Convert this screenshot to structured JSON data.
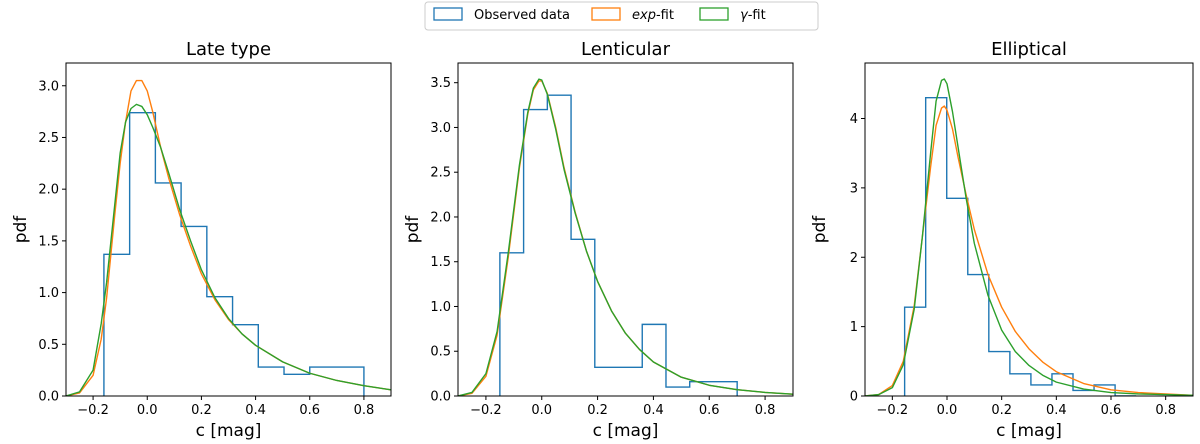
{
  "legend": {
    "items": [
      {
        "key": "observed",
        "label": "Observed data",
        "color": "#1f77b4"
      },
      {
        "key": "exp",
        "label_italic": "exp",
        "label_rest": "-fit",
        "color": "#ff7f0e"
      },
      {
        "key": "gamma",
        "label_italic": "γ",
        "label_rest": "-fit",
        "color": "#2ca02c"
      }
    ]
  },
  "chart_data": [
    {
      "type": "histogram",
      "title": "Late type",
      "xlabel": "c [mag]",
      "ylabel": "pdf",
      "xlim": [
        -0.3,
        0.9
      ],
      "ylim": [
        0,
        3.22
      ],
      "xticks": [
        -0.2,
        0.0,
        0.2,
        0.4,
        0.6,
        0.8
      ],
      "xtick_labels": [
        "−0.2",
        "0.0",
        "0.2",
        "0.4",
        "0.6",
        "0.8"
      ],
      "yticks": [
        0.0,
        0.5,
        1.0,
        1.5,
        2.0,
        2.5,
        3.0
      ],
      "ytick_labels": [
        "0.0",
        "0.5",
        "1.0",
        "1.5",
        "2.0",
        "2.5",
        "3.0"
      ],
      "observed": {
        "edges": [
          -0.16,
          -0.065,
          0.03,
          0.125,
          0.22,
          0.315,
          0.41,
          0.505,
          0.6,
          0.8
        ],
        "values": [
          1.37,
          2.74,
          2.06,
          1.64,
          0.96,
          0.69,
          0.28,
          0.21,
          0.28
        ]
      },
      "exp_fit": {
        "x": [
          -0.3,
          -0.25,
          -0.2,
          -0.17,
          -0.15,
          -0.12,
          -0.1,
          -0.08,
          -0.06,
          -0.04,
          -0.02,
          0.0,
          0.02,
          0.05,
          0.08,
          0.12,
          0.16,
          0.2,
          0.25,
          0.3,
          0.35,
          0.4,
          0.5,
          0.6,
          0.7,
          0.8,
          0.9
        ],
        "y": [
          0.0,
          0.03,
          0.2,
          0.55,
          0.95,
          1.75,
          2.25,
          2.65,
          2.95,
          3.05,
          3.05,
          2.95,
          2.75,
          2.4,
          2.1,
          1.75,
          1.45,
          1.18,
          0.93,
          0.74,
          0.6,
          0.49,
          0.33,
          0.22,
          0.15,
          0.1,
          0.06
        ]
      },
      "gamma_fit": {
        "x": [
          -0.3,
          -0.25,
          -0.2,
          -0.17,
          -0.15,
          -0.12,
          -0.1,
          -0.08,
          -0.06,
          -0.04,
          -0.02,
          0.0,
          0.02,
          0.05,
          0.08,
          0.12,
          0.16,
          0.2,
          0.25,
          0.3,
          0.35,
          0.4,
          0.5,
          0.6,
          0.7,
          0.8,
          0.9
        ],
        "y": [
          0.0,
          0.04,
          0.25,
          0.7,
          1.1,
          1.85,
          2.35,
          2.65,
          2.78,
          2.82,
          2.8,
          2.72,
          2.6,
          2.4,
          2.15,
          1.8,
          1.5,
          1.22,
          0.95,
          0.75,
          0.6,
          0.49,
          0.33,
          0.22,
          0.15,
          0.1,
          0.06
        ]
      }
    },
    {
      "type": "histogram",
      "title": "Lenticular",
      "xlabel": "c [mag]",
      "ylabel": "pdf",
      "xlim": [
        -0.3,
        0.9
      ],
      "ylim": [
        0,
        3.72
      ],
      "xticks": [
        -0.2,
        0.0,
        0.2,
        0.4,
        0.6,
        0.8
      ],
      "xtick_labels": [
        "−0.2",
        "0.0",
        "0.2",
        "0.4",
        "0.6",
        "0.8"
      ],
      "yticks": [
        0.0,
        0.5,
        1.0,
        1.5,
        2.0,
        2.5,
        3.0,
        3.5
      ],
      "ytick_labels": [
        "0.0",
        "0.5",
        "1.0",
        "1.5",
        "2.0",
        "2.5",
        "3.0",
        "3.5"
      ],
      "observed": {
        "edges": [
          -0.15,
          -0.065,
          0.02,
          0.105,
          0.19,
          0.275,
          0.36,
          0.445,
          0.53,
          0.7
        ],
        "values": [
          1.6,
          3.2,
          3.36,
          1.75,
          0.32,
          0.32,
          0.8,
          0.1,
          0.16
        ]
      },
      "exp_fit": {
        "x": [
          -0.3,
          -0.25,
          -0.2,
          -0.16,
          -0.12,
          -0.08,
          -0.05,
          -0.03,
          -0.01,
          0.0,
          0.02,
          0.05,
          0.08,
          0.12,
          0.16,
          0.2,
          0.25,
          0.3,
          0.35,
          0.4,
          0.5,
          0.6,
          0.7,
          0.8,
          0.9
        ],
        "y": [
          0.0,
          0.03,
          0.22,
          0.68,
          1.55,
          2.55,
          3.15,
          3.42,
          3.52,
          3.52,
          3.38,
          3.0,
          2.55,
          2.05,
          1.62,
          1.28,
          0.95,
          0.7,
          0.52,
          0.38,
          0.21,
          0.12,
          0.07,
          0.04,
          0.02
        ]
      },
      "gamma_fit": {
        "x": [
          -0.3,
          -0.25,
          -0.2,
          -0.16,
          -0.12,
          -0.08,
          -0.05,
          -0.03,
          -0.01,
          0.0,
          0.02,
          0.05,
          0.08,
          0.12,
          0.16,
          0.2,
          0.25,
          0.3,
          0.35,
          0.4,
          0.5,
          0.6,
          0.7,
          0.8,
          0.9
        ],
        "y": [
          0.0,
          0.04,
          0.25,
          0.72,
          1.6,
          2.58,
          3.17,
          3.44,
          3.54,
          3.53,
          3.37,
          2.98,
          2.53,
          2.04,
          1.62,
          1.28,
          0.95,
          0.7,
          0.52,
          0.38,
          0.21,
          0.12,
          0.07,
          0.04,
          0.02
        ]
      }
    },
    {
      "type": "histogram",
      "title": "Elliptical",
      "xlabel": "c [mag]",
      "ylabel": "pdf",
      "xlim": [
        -0.3,
        0.9
      ],
      "ylim": [
        0,
        4.8
      ],
      "xticks": [
        -0.2,
        0.0,
        0.2,
        0.4,
        0.6,
        0.8
      ],
      "xtick_labels": [
        "−0.2",
        "0.0",
        "0.2",
        "0.4",
        "0.6",
        "0.8"
      ],
      "yticks": [
        0,
        1,
        2,
        3,
        4
      ],
      "ytick_labels": [
        "0",
        "1",
        "2",
        "3",
        "4"
      ],
      "observed": {
        "edges": [
          -0.155,
          -0.078,
          -0.001,
          0.076,
          0.153,
          0.23,
          0.307,
          0.384,
          0.461,
          0.538,
          0.615,
          0.692
        ],
        "values": [
          1.28,
          4.3,
          2.85,
          1.75,
          0.64,
          0.32,
          0.16,
          0.32,
          0.08,
          0.16,
          0.0
        ]
      },
      "exp_fit": {
        "x": [
          -0.3,
          -0.25,
          -0.2,
          -0.16,
          -0.12,
          -0.09,
          -0.06,
          -0.04,
          -0.02,
          -0.01,
          0.0,
          0.02,
          0.04,
          0.07,
          0.1,
          0.15,
          0.2,
          0.25,
          0.3,
          0.35,
          0.4,
          0.5,
          0.6,
          0.7,
          0.8,
          0.9
        ],
        "y": [
          0.0,
          0.02,
          0.15,
          0.5,
          1.3,
          2.3,
          3.3,
          3.9,
          4.15,
          4.18,
          4.12,
          3.85,
          3.45,
          2.9,
          2.4,
          1.75,
          1.28,
          0.93,
          0.68,
          0.49,
          0.35,
          0.18,
          0.09,
          0.05,
          0.03,
          0.01
        ]
      },
      "gamma_fit": {
        "x": [
          -0.3,
          -0.25,
          -0.2,
          -0.16,
          -0.12,
          -0.09,
          -0.06,
          -0.04,
          -0.02,
          -0.01,
          0.0,
          0.02,
          0.04,
          0.07,
          0.1,
          0.15,
          0.2,
          0.25,
          0.3,
          0.35,
          0.4,
          0.5,
          0.6,
          0.7,
          0.8,
          0.9
        ],
        "y": [
          0.0,
          0.02,
          0.12,
          0.45,
          1.25,
          2.3,
          3.5,
          4.25,
          4.55,
          4.57,
          4.5,
          4.1,
          3.6,
          2.85,
          2.2,
          1.45,
          0.95,
          0.64,
          0.44,
          0.3,
          0.2,
          0.1,
          0.05,
          0.03,
          0.02,
          0.01
        ]
      }
    }
  ]
}
